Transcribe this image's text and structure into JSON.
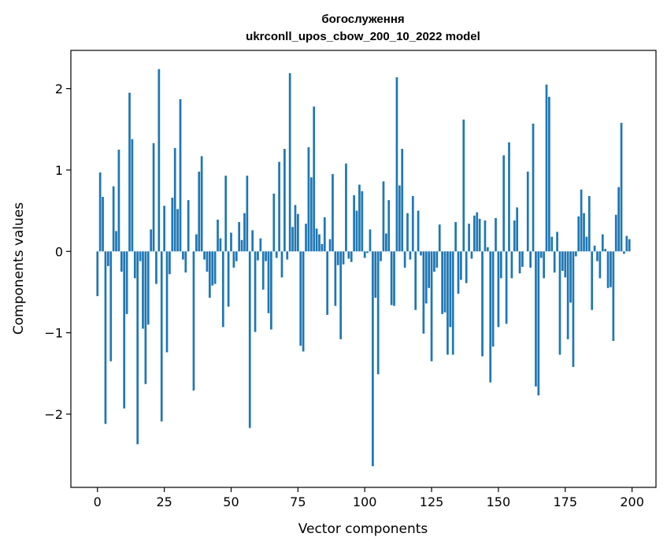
{
  "chart_data": {
    "type": "bar",
    "title": "богослуження",
    "subtitle": "ukrconll_upos_cbow_200_10_2022 model",
    "xlabel": "Vector components",
    "ylabel": "Components values",
    "xlim": [
      -9.95,
      208.95
    ],
    "ylim": [
      -2.9,
      2.47
    ],
    "xticks": [
      0,
      25,
      50,
      75,
      100,
      125,
      150,
      175,
      200
    ],
    "yticks": [
      -2,
      -1,
      0,
      1,
      2
    ],
    "ytick_labels": [
      "−2",
      "−1",
      "0",
      "1",
      "2"
    ],
    "grid": false,
    "bar_color": "#1f77b4",
    "x": [
      0,
      1,
      2,
      3,
      4,
      5,
      6,
      7,
      8,
      9,
      10,
      11,
      12,
      13,
      14,
      15,
      16,
      17,
      18,
      19,
      20,
      21,
      22,
      23,
      24,
      25,
      26,
      27,
      28,
      29,
      30,
      31,
      32,
      33,
      34,
      35,
      36,
      37,
      38,
      39,
      40,
      41,
      42,
      43,
      44,
      45,
      46,
      47,
      48,
      49,
      50,
      51,
      52,
      53,
      54,
      55,
      56,
      57,
      58,
      59,
      60,
      61,
      62,
      63,
      64,
      65,
      66,
      67,
      68,
      69,
      70,
      71,
      72,
      73,
      74,
      75,
      76,
      77,
      78,
      79,
      80,
      81,
      82,
      83,
      84,
      85,
      86,
      87,
      88,
      89,
      90,
      91,
      92,
      93,
      94,
      95,
      96,
      97,
      98,
      99,
      100,
      101,
      102,
      103,
      104,
      105,
      106,
      107,
      108,
      109,
      110,
      111,
      112,
      113,
      114,
      115,
      116,
      117,
      118,
      119,
      120,
      121,
      122,
      123,
      124,
      125,
      126,
      127,
      128,
      129,
      130,
      131,
      132,
      133,
      134,
      135,
      136,
      137,
      138,
      139,
      140,
      141,
      142,
      143,
      144,
      145,
      146,
      147,
      148,
      149,
      150,
      151,
      152,
      153,
      154,
      155,
      156,
      157,
      158,
      159,
      160,
      161,
      162,
      163,
      164,
      165,
      166,
      167,
      168,
      169,
      170,
      171,
      172,
      173,
      174,
      175,
      176,
      177,
      178,
      179,
      180,
      181,
      182,
      183,
      184,
      185,
      186,
      187,
      188,
      189,
      190,
      191,
      192,
      193,
      194,
      195,
      196,
      197,
      198,
      199
    ],
    "values": [
      -0.55,
      0.97,
      0.67,
      -2.12,
      -0.18,
      -1.35,
      0.8,
      0.25,
      1.25,
      -0.25,
      -1.93,
      -0.77,
      1.95,
      1.38,
      -0.33,
      -2.37,
      -0.12,
      -0.95,
      -1.63,
      -0.9,
      0.27,
      1.33,
      -0.4,
      2.24,
      -2.09,
      0.56,
      -1.24,
      -0.28,
      0.66,
      1.27,
      0.52,
      1.87,
      -0.1,
      -0.26,
      0.63,
      0.0,
      -1.71,
      0.21,
      0.98,
      1.17,
      -0.1,
      -0.25,
      -0.57,
      -0.42,
      -0.4,
      0.39,
      0.16,
      -0.93,
      0.93,
      -0.68,
      0.23,
      -0.2,
      -0.12,
      0.36,
      0.14,
      0.47,
      0.93,
      -2.17,
      0.26,
      -0.99,
      -0.11,
      0.16,
      -0.47,
      -0.12,
      -0.76,
      -0.96,
      0.71,
      -0.08,
      1.1,
      -0.32,
      1.26,
      -0.1,
      2.19,
      0.3,
      0.57,
      0.46,
      -1.16,
      -1.23,
      0.34,
      1.28,
      0.91,
      1.78,
      0.28,
      0.21,
      0.09,
      0.42,
      -0.78,
      0.15,
      0.95,
      -0.67,
      -0.17,
      -1.08,
      -0.16,
      1.08,
      -0.09,
      -0.13,
      0.69,
      0.5,
      0.82,
      0.74,
      -0.08,
      -0.02,
      0.27,
      -2.64,
      -0.57,
      -1.51,
      -0.12,
      0.86,
      0.22,
      0.63,
      -0.66,
      -0.67,
      2.14,
      0.81,
      1.26,
      -0.2,
      0.47,
      -0.1,
      0.68,
      -0.72,
      0.5,
      -0.05,
      -1.01,
      -0.64,
      -0.45,
      -1.35,
      -0.25,
      -0.2,
      0.33,
      -0.77,
      -0.75,
      -1.27,
      -0.93,
      -1.27,
      0.36,
      -0.52,
      -0.35,
      1.62,
      -0.39,
      0.34,
      -0.09,
      0.44,
      0.48,
      0.4,
      -1.29,
      0.38,
      0.05,
      -1.61,
      -1.17,
      0.41,
      -0.93,
      -0.33,
      1.18,
      -0.89,
      1.34,
      -0.33,
      0.38,
      0.54,
      -0.27,
      -0.19,
      0.0,
      0.98,
      -0.2,
      1.57,
      -1.66,
      -1.77,
      -0.08,
      -0.33,
      2.05,
      1.9,
      0.18,
      -0.26,
      0.24,
      -1.27,
      -0.24,
      -0.32,
      -1.08,
      -0.63,
      -1.42,
      -0.06,
      0.43,
      0.76,
      0.47,
      0.18,
      0.68,
      -0.72,
      0.07,
      -0.12,
      -0.33,
      0.21,
      0.03,
      -0.45,
      -0.44,
      -1.1,
      0.45,
      0.79,
      1.58,
      -0.03,
      0.19,
      0.15
    ]
  }
}
